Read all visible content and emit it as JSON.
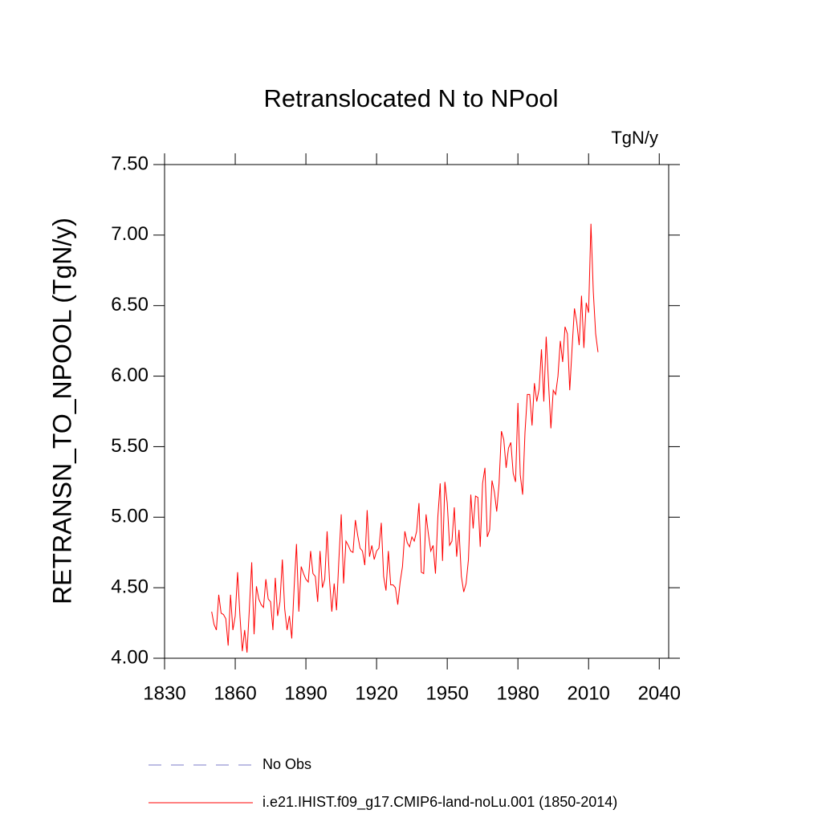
{
  "chart_data": {
    "type": "line",
    "title": "Retranslocated N to NPool",
    "units": "TgN/y",
    "y_label": "RETRANSN_TO_NPOOL  (TgN/y)",
    "xlim": [
      1830,
      2044
    ],
    "xticks": [
      1830,
      1860,
      1890,
      1920,
      1950,
      1980,
      2010,
      2040
    ],
    "ylim": [
      4.0,
      7.5
    ],
    "yticks": [
      {
        "value": 4.0,
        "label": "4.00"
      },
      {
        "value": 4.5,
        "label": "4.50"
      },
      {
        "value": 5.0,
        "label": "5.00"
      },
      {
        "value": 5.5,
        "label": "5.50"
      },
      {
        "value": 6.0,
        "label": "6.00"
      },
      {
        "value": 6.5,
        "label": "6.50"
      },
      {
        "value": 7.0,
        "label": "7.00"
      },
      {
        "value": 7.5,
        "label": "7.50"
      }
    ],
    "reference_legend": {
      "name": "No Obs",
      "color": "#7b7bc8"
    },
    "x": [
      1850,
      1851,
      1852,
      1853,
      1854,
      1855,
      1856,
      1857,
      1858,
      1859,
      1860,
      1861,
      1862,
      1863,
      1864,
      1865,
      1866,
      1867,
      1868,
      1869,
      1870,
      1871,
      1872,
      1873,
      1874,
      1875,
      1876,
      1877,
      1878,
      1879,
      1880,
      1881,
      1882,
      1883,
      1884,
      1885,
      1886,
      1887,
      1888,
      1889,
      1890,
      1891,
      1892,
      1893,
      1894,
      1895,
      1896,
      1897,
      1898,
      1899,
      1900,
      1901,
      1902,
      1903,
      1904,
      1905,
      1906,
      1907,
      1908,
      1909,
      1910,
      1911,
      1912,
      1913,
      1914,
      1915,
      1916,
      1917,
      1918,
      1919,
      1920,
      1921,
      1922,
      1923,
      1924,
      1925,
      1926,
      1927,
      1928,
      1929,
      1930,
      1931,
      1932,
      1933,
      1934,
      1935,
      1936,
      1937,
      1938,
      1939,
      1940,
      1941,
      1942,
      1943,
      1944,
      1945,
      1946,
      1947,
      1948,
      1949,
      1950,
      1951,
      1952,
      1953,
      1954,
      1955,
      1956,
      1957,
      1958,
      1959,
      1960,
      1961,
      1962,
      1963,
      1964,
      1965,
      1966,
      1967,
      1968,
      1969,
      1970,
      1971,
      1972,
      1973,
      1974,
      1975,
      1976,
      1977,
      1978,
      1979,
      1980,
      1981,
      1982,
      1983,
      1984,
      1985,
      1986,
      1987,
      1988,
      1989,
      1990,
      1991,
      1992,
      1993,
      1994,
      1995,
      1996,
      1997,
      1998,
      1999,
      2000,
      2001,
      2002,
      2003,
      2004,
      2005,
      2006,
      2007,
      2008,
      2009,
      2010,
      2011,
      2012,
      2013,
      2014
    ],
    "series": [
      {
        "name": "i.e21.IHIST.f09_g17.CMIP6-land-noLu.001 (1850-2014)",
        "color": "#ff0000",
        "values": [
          4.33,
          4.24,
          4.2,
          4.45,
          4.32,
          4.31,
          4.28,
          4.09,
          4.45,
          4.2,
          4.3,
          4.61,
          4.3,
          4.05,
          4.2,
          4.04,
          4.35,
          4.68,
          4.17,
          4.51,
          4.42,
          4.38,
          4.36,
          4.56,
          4.42,
          4.4,
          4.2,
          4.57,
          4.3,
          4.4,
          4.7,
          4.35,
          4.2,
          4.3,
          4.14,
          4.5,
          4.81,
          4.33,
          4.65,
          4.6,
          4.56,
          4.54,
          4.76,
          4.6,
          4.58,
          4.4,
          4.76,
          4.5,
          4.56,
          4.9,
          4.56,
          4.33,
          4.53,
          4.34,
          4.7,
          5.02,
          4.53,
          4.83,
          4.8,
          4.76,
          4.75,
          4.98,
          4.87,
          4.78,
          4.76,
          4.66,
          5.05,
          4.72,
          4.8,
          4.7,
          4.76,
          4.78,
          4.96,
          4.58,
          4.48,
          4.76,
          4.52,
          4.52,
          4.5,
          4.38,
          4.54,
          4.65,
          4.9,
          4.82,
          4.79,
          4.86,
          4.83,
          4.9,
          5.1,
          4.61,
          4.6,
          5.02,
          4.88,
          4.76,
          4.8,
          4.6,
          5.0,
          5.24,
          4.69,
          5.25,
          5.1,
          4.8,
          4.83,
          5.07,
          4.72,
          4.91,
          4.58,
          4.47,
          4.53,
          4.7,
          5.16,
          4.92,
          5.15,
          5.14,
          4.79,
          5.24,
          5.35,
          4.86,
          4.91,
          5.26,
          5.18,
          5.04,
          5.24,
          5.61,
          5.55,
          5.35,
          5.49,
          5.53,
          5.31,
          5.25,
          5.81,
          5.3,
          5.16,
          5.6,
          5.87,
          5.87,
          5.65,
          5.95,
          5.82,
          5.91,
          6.19,
          5.82,
          6.28,
          5.95,
          5.63,
          5.9,
          5.87,
          6.0,
          6.25,
          6.1,
          6.35,
          6.3,
          5.9,
          6.2,
          6.48,
          6.38,
          6.22,
          6.57,
          6.2,
          6.52,
          6.45,
          7.08,
          6.6,
          6.3,
          6.17
        ]
      }
    ]
  }
}
